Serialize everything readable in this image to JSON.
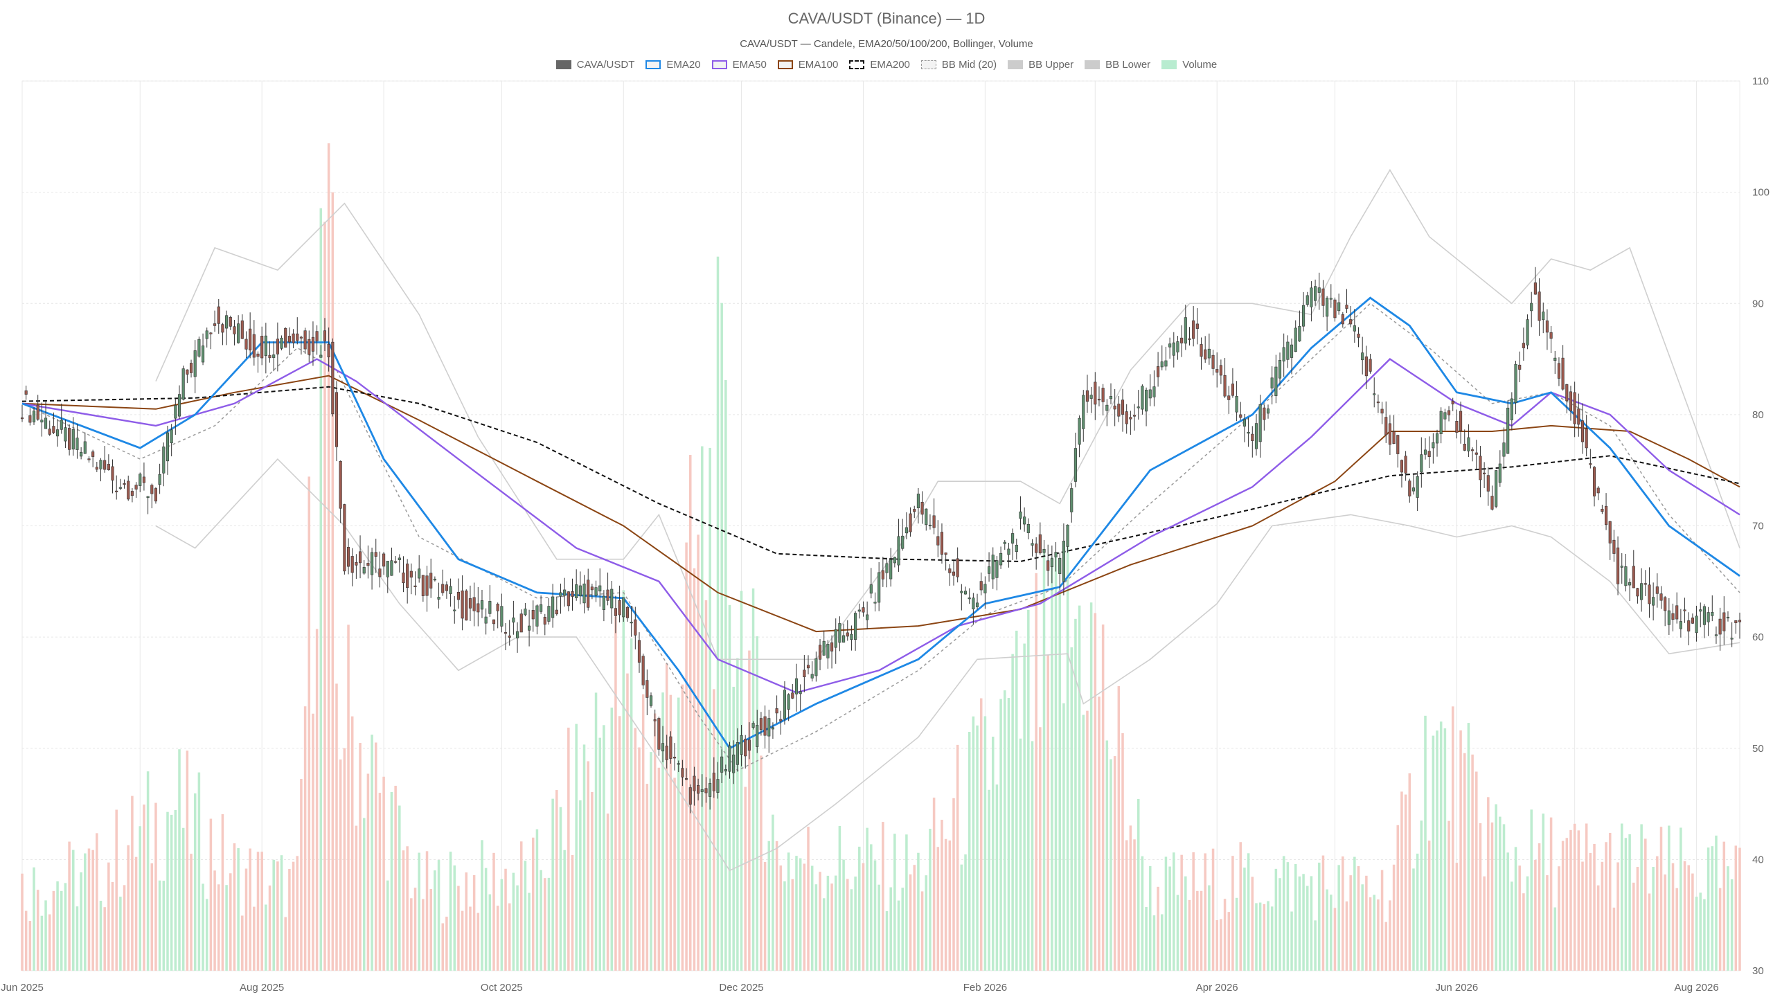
{
  "chart_data": {
    "type": "candlestick",
    "title": "CAVA/USDT (Binance) — 1D",
    "subtitle": "CAVA/USDT — Candele, EMA20/50/100/200, Bollinger, Volume",
    "x_axis": {
      "type": "date",
      "range": [
        "2025-06-01",
        "2026-08-12"
      ],
      "tick_labels": [
        "Jun 2025",
        "Aug 2025",
        "Oct 2025",
        "Dec 2025",
        "Feb 2026",
        "Apr 2026",
        "Jun 2026",
        "Aug 2026"
      ]
    },
    "y_axis": {
      "position": "right",
      "range": [
        30,
        110
      ],
      "tick_labels": [
        "30",
        "40",
        "50",
        "60",
        "70",
        "80",
        "90",
        "100",
        "110"
      ]
    },
    "grid": true,
    "legend": {
      "placement": "top-center",
      "items": [
        {
          "label": "CAVA/USDT",
          "color": "#666666",
          "style": "filled"
        },
        {
          "label": "EMA20",
          "color": "#1e88e5",
          "style": "line"
        },
        {
          "label": "EMA50",
          "color": "#8e5ce8",
          "style": "line"
        },
        {
          "label": "EMA100",
          "color": "#8b4513",
          "style": "line"
        },
        {
          "label": "EMA200",
          "color": "#111111",
          "style": "dashed"
        },
        {
          "label": "BB Mid (20)",
          "color": "#999999",
          "style": "dotted"
        },
        {
          "label": "BB Upper",
          "color": "#cccccc",
          "style": "filled"
        },
        {
          "label": "BB Lower",
          "color": "#cccccc",
          "style": "filled"
        },
        {
          "label": "Volume",
          "color": "#b8ecd0",
          "style": "filled"
        }
      ]
    },
    "colors": {
      "up": "#5f8f6f",
      "down": "#9c5a4f",
      "volume_up": "#bdeccf",
      "volume_down": "#f6c9c2"
    },
    "series": [
      {
        "name": "CAVA/USDT",
        "type": "ohlc_close_anchors",
        "points": [
          [
            "2025-06-01",
            81
          ],
          [
            "2025-06-12",
            78
          ],
          [
            "2025-06-25",
            74
          ],
          [
            "2025-07-05",
            73
          ],
          [
            "2025-07-12",
            83
          ],
          [
            "2025-07-20",
            89
          ],
          [
            "2025-07-30",
            86
          ],
          [
            "2025-08-10",
            87
          ],
          [
            "2025-08-18",
            86
          ],
          [
            "2025-08-22",
            67
          ],
          [
            "2025-09-05",
            66
          ],
          [
            "2025-09-20",
            63
          ],
          [
            "2025-10-05",
            61
          ],
          [
            "2025-10-20",
            64
          ],
          [
            "2025-11-01",
            63
          ],
          [
            "2025-11-10",
            51
          ],
          [
            "2025-11-20",
            45
          ],
          [
            "2025-11-30",
            50
          ],
          [
            "2025-12-10",
            53
          ],
          [
            "2025-12-20",
            58
          ],
          [
            "2026-01-01",
            62
          ],
          [
            "2026-01-15",
            72
          ],
          [
            "2026-01-28",
            63
          ],
          [
            "2026-02-10",
            70
          ],
          [
            "2026-02-20",
            66
          ],
          [
            "2026-02-26",
            82
          ],
          [
            "2026-03-10",
            80
          ],
          [
            "2026-03-25",
            88
          ],
          [
            "2026-04-10",
            78
          ],
          [
            "2026-04-25",
            91
          ],
          [
            "2026-05-05",
            88
          ],
          [
            "2026-05-20",
            73
          ],
          [
            "2026-05-30",
            81
          ],
          [
            "2026-06-10",
            72
          ],
          [
            "2026-06-20",
            91
          ],
          [
            "2026-07-01",
            80
          ],
          [
            "2026-07-12",
            66
          ],
          [
            "2026-07-25",
            62
          ],
          [
            "2026-08-12",
            61
          ]
        ]
      },
      {
        "name": "EMA20",
        "points": [
          [
            "2025-06-01",
            81
          ],
          [
            "2025-07-01",
            77
          ],
          [
            "2025-07-15",
            80
          ],
          [
            "2025-08-01",
            86.5
          ],
          [
            "2025-08-18",
            86.5
          ],
          [
            "2025-09-01",
            76
          ],
          [
            "2025-09-20",
            67
          ],
          [
            "2025-10-10",
            64
          ],
          [
            "2025-11-01",
            63.5
          ],
          [
            "2025-11-15",
            57
          ],
          [
            "2025-11-28",
            50
          ],
          [
            "2025-12-20",
            54
          ],
          [
            "2026-01-15",
            58
          ],
          [
            "2026-02-01",
            63
          ],
          [
            "2026-02-20",
            64.5
          ],
          [
            "2026-03-15",
            75
          ],
          [
            "2026-04-10",
            80
          ],
          [
            "2026-04-25",
            86
          ],
          [
            "2026-05-10",
            90.5
          ],
          [
            "2026-05-20",
            88
          ],
          [
            "2026-06-01",
            82
          ],
          [
            "2026-06-15",
            81
          ],
          [
            "2026-06-25",
            82
          ],
          [
            "2026-07-10",
            77
          ],
          [
            "2026-07-25",
            70
          ],
          [
            "2026-08-12",
            65.5
          ]
        ]
      },
      {
        "name": "EMA50",
        "points": [
          [
            "2025-06-01",
            81
          ],
          [
            "2025-07-05",
            79
          ],
          [
            "2025-07-25",
            81
          ],
          [
            "2025-08-15",
            85
          ],
          [
            "2025-08-25",
            83
          ],
          [
            "2025-09-20",
            76
          ],
          [
            "2025-10-20",
            68
          ],
          [
            "2025-11-10",
            65
          ],
          [
            "2025-11-25",
            58
          ],
          [
            "2025-12-15",
            55
          ],
          [
            "2026-01-05",
            57
          ],
          [
            "2026-01-25",
            61
          ],
          [
            "2026-02-15",
            63
          ],
          [
            "2026-03-15",
            69
          ],
          [
            "2026-04-10",
            73.5
          ],
          [
            "2026-04-25",
            78
          ],
          [
            "2026-05-15",
            85
          ],
          [
            "2026-06-01",
            81
          ],
          [
            "2026-06-15",
            79
          ],
          [
            "2026-06-25",
            82
          ],
          [
            "2026-07-10",
            80
          ],
          [
            "2026-07-25",
            75
          ],
          [
            "2026-08-12",
            71
          ]
        ]
      },
      {
        "name": "EMA100",
        "points": [
          [
            "2025-06-01",
            81
          ],
          [
            "2025-07-05",
            80.5
          ],
          [
            "2025-07-25",
            82
          ],
          [
            "2025-08-18",
            83.5
          ],
          [
            "2025-09-10",
            79.5
          ],
          [
            "2025-10-10",
            74
          ],
          [
            "2025-11-01",
            70
          ],
          [
            "2025-11-25",
            64
          ],
          [
            "2025-12-20",
            60.5
          ],
          [
            "2026-01-15",
            61
          ],
          [
            "2026-02-10",
            62.5
          ],
          [
            "2026-03-10",
            66.5
          ],
          [
            "2026-04-10",
            70
          ],
          [
            "2026-05-01",
            74
          ],
          [
            "2026-05-15",
            78.5
          ],
          [
            "2026-06-10",
            78.5
          ],
          [
            "2026-06-25",
            79
          ],
          [
            "2026-07-15",
            78.5
          ],
          [
            "2026-07-30",
            76
          ],
          [
            "2026-08-12",
            73.5
          ]
        ]
      },
      {
        "name": "EMA200",
        "points": [
          [
            "2025-06-01",
            81.2
          ],
          [
            "2025-07-15",
            81.5
          ],
          [
            "2025-08-18",
            82.5
          ],
          [
            "2025-09-10",
            81
          ],
          [
            "2025-10-10",
            77.5
          ],
          [
            "2025-11-10",
            72
          ],
          [
            "2025-12-10",
            67.5
          ],
          [
            "2026-01-10",
            67
          ],
          [
            "2026-02-10",
            66.8
          ],
          [
            "2026-03-10",
            69
          ],
          [
            "2026-04-10",
            71.5
          ],
          [
            "2026-05-15",
            74.5
          ],
          [
            "2026-06-15",
            75.3
          ],
          [
            "2026-07-10",
            76.3
          ],
          [
            "2026-08-12",
            73.8
          ]
        ]
      },
      {
        "name": "BB Mid (20)",
        "points": [
          [
            "2025-06-01",
            81
          ],
          [
            "2025-07-01",
            76
          ],
          [
            "2025-07-20",
            79
          ],
          [
            "2025-08-10",
            86
          ],
          [
            "2025-08-20",
            84
          ],
          [
            "2025-09-10",
            69
          ],
          [
            "2025-10-10",
            63.5
          ],
          [
            "2025-11-01",
            64
          ],
          [
            "2025-11-20",
            53
          ],
          [
            "2025-11-30",
            48
          ],
          [
            "2025-12-20",
            51.5
          ],
          [
            "2026-01-15",
            57
          ],
          [
            "2026-02-01",
            62
          ],
          [
            "2026-02-20",
            64.5
          ],
          [
            "2026-03-15",
            72
          ],
          [
            "2026-04-10",
            80
          ],
          [
            "2026-05-10",
            90
          ],
          [
            "2026-05-25",
            86
          ],
          [
            "2026-06-10",
            81
          ],
          [
            "2026-06-25",
            82
          ],
          [
            "2026-07-10",
            79
          ],
          [
            "2026-07-25",
            71
          ],
          [
            "2026-08-12",
            64
          ]
        ]
      },
      {
        "name": "BB Upper",
        "points": [
          [
            "2025-07-05",
            83
          ],
          [
            "2025-07-20",
            95
          ],
          [
            "2025-08-05",
            93
          ],
          [
            "2025-08-22",
            99
          ],
          [
            "2025-09-10",
            89
          ],
          [
            "2025-09-25",
            78
          ],
          [
            "2025-10-15",
            67
          ],
          [
            "2025-11-01",
            67
          ],
          [
            "2025-11-10",
            71
          ],
          [
            "2025-11-25",
            58
          ],
          [
            "2025-12-20",
            58
          ],
          [
            "2026-01-10",
            68
          ],
          [
            "2026-01-20",
            74
          ],
          [
            "2026-02-10",
            74
          ],
          [
            "2026-02-20",
            72
          ],
          [
            "2026-03-10",
            84
          ],
          [
            "2026-03-25",
            90
          ],
          [
            "2026-04-10",
            90
          ],
          [
            "2026-04-25",
            89
          ],
          [
            "2026-05-05",
            96
          ],
          [
            "2026-05-15",
            102
          ],
          [
            "2026-05-25",
            96
          ],
          [
            "2026-06-15",
            90
          ],
          [
            "2026-06-25",
            94
          ],
          [
            "2026-07-05",
            93
          ],
          [
            "2026-07-15",
            95
          ],
          [
            "2026-08-12",
            68
          ]
        ]
      },
      {
        "name": "BB Lower",
        "points": [
          [
            "2025-07-05",
            70
          ],
          [
            "2025-07-15",
            68
          ],
          [
            "2025-08-05",
            76
          ],
          [
            "2025-08-22",
            70
          ],
          [
            "2025-09-05",
            63
          ],
          [
            "2025-09-20",
            57
          ],
          [
            "2025-10-05",
            60
          ],
          [
            "2025-10-20",
            60
          ],
          [
            "2025-11-10",
            49
          ],
          [
            "2025-11-28",
            39
          ],
          [
            "2025-12-10",
            41
          ],
          [
            "2025-12-25",
            45
          ],
          [
            "2026-01-15",
            51
          ],
          [
            "2026-01-30",
            58
          ],
          [
            "2026-02-22",
            58.5
          ],
          [
            "2026-02-26",
            54
          ],
          [
            "2026-03-15",
            58
          ],
          [
            "2026-04-01",
            63
          ],
          [
            "2026-04-15",
            70
          ],
          [
            "2026-05-05",
            71
          ],
          [
            "2026-05-20",
            70
          ],
          [
            "2026-06-01",
            69
          ],
          [
            "2026-06-15",
            70
          ],
          [
            "2026-06-25",
            69
          ],
          [
            "2026-07-10",
            65
          ],
          [
            "2026-07-25",
            58.5
          ],
          [
            "2026-08-12",
            59.5
          ]
        ]
      },
      {
        "name": "Volume",
        "note_unit": "relative",
        "points": [
          [
            "2025-06-01",
            0.1
          ],
          [
            "2025-06-20",
            0.12
          ],
          [
            "2025-07-10",
            0.2
          ],
          [
            "2025-07-25",
            0.12
          ],
          [
            "2025-08-10",
            0.1
          ],
          [
            "2025-08-18",
            1.0
          ],
          [
            "2025-08-20",
            0.34
          ],
          [
            "2025-09-10",
            0.1
          ],
          [
            "2025-10-10",
            0.12
          ],
          [
            "2025-11-01",
            0.35
          ],
          [
            "2025-11-10",
            0.27
          ],
          [
            "2025-11-25",
            0.6
          ],
          [
            "2025-12-10",
            0.14
          ],
          [
            "2026-01-15",
            0.12
          ],
          [
            "2026-02-26",
            0.43
          ],
          [
            "2026-03-15",
            0.1
          ],
          [
            "2026-04-10",
            0.11
          ],
          [
            "2026-05-15",
            0.1
          ],
          [
            "2026-05-25",
            0.27
          ],
          [
            "2026-06-15",
            0.14
          ],
          [
            "2026-07-15",
            0.13
          ],
          [
            "2026-08-12",
            0.11
          ]
        ]
      }
    ]
  }
}
